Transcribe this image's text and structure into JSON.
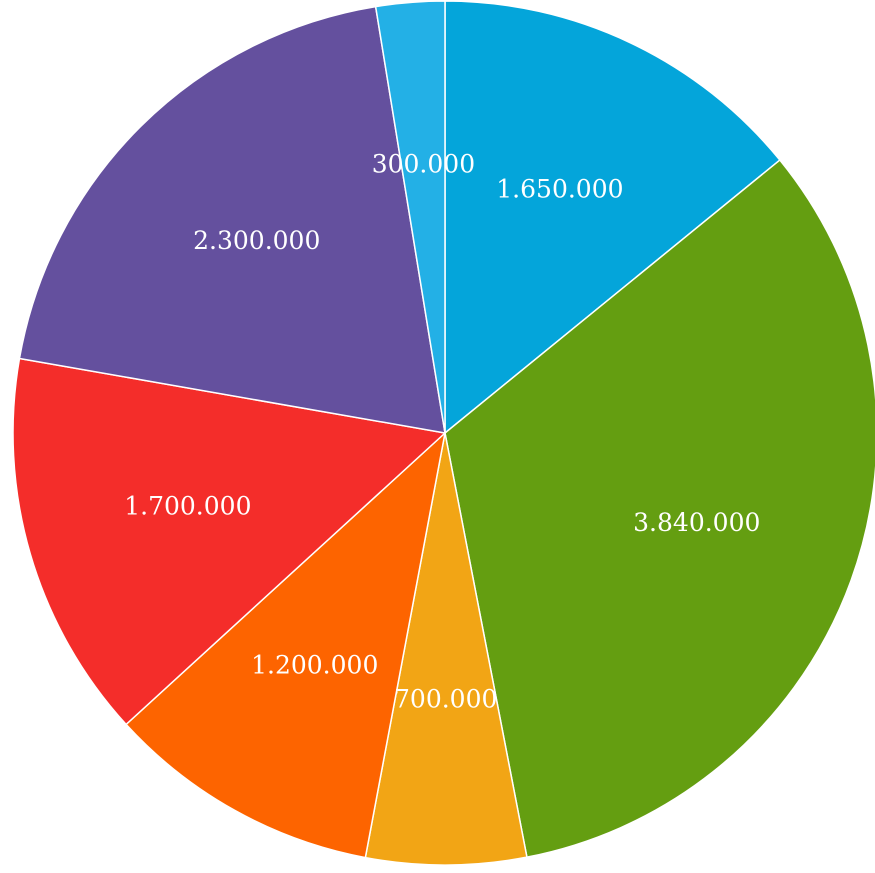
{
  "chart_data": {
    "type": "pie",
    "start_angle_deg": 0,
    "direction": "clockwise",
    "legend": "none",
    "slices": [
      {
        "label": "1.650.000",
        "value": 1650000,
        "color": "#04a5da"
      },
      {
        "label": "3.840.000",
        "value": 3840000,
        "color": "#649e11"
      },
      {
        "label": "700.000",
        "value": 700000,
        "color": "#f2a515"
      },
      {
        "label": "1.200.000",
        "value": 1200000,
        "color": "#fd6400"
      },
      {
        "label": "1.700.000",
        "value": 1700000,
        "color": "#f42d2a"
      },
      {
        "label": "2.300.000",
        "value": 2300000,
        "color": "#64509e"
      },
      {
        "label": "300.000",
        "value": 300000,
        "color": "#23b0e6"
      }
    ]
  }
}
